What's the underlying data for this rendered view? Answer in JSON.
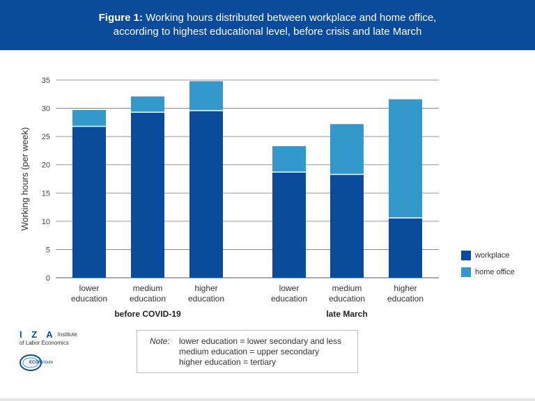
{
  "header": {
    "figure_label": "Figure 1:",
    "title_line1": "Working hours distributed between workplace and home office,",
    "title_line2": "according to highest educational level, before crisis and late March"
  },
  "chart_data": {
    "type": "bar",
    "stacked": true,
    "ylabel": "Working hours (per week)",
    "ylim": [
      0,
      35
    ],
    "yticks": [
      0,
      5,
      10,
      15,
      20,
      25,
      30,
      35
    ],
    "grid": true,
    "groups": [
      {
        "label": "before COVID-19",
        "categories": [
          [
            "lower",
            "education"
          ],
          [
            "medium",
            "education"
          ],
          [
            "higher",
            "education"
          ]
        ]
      },
      {
        "label": "late March",
        "categories": [
          [
            "lower",
            "education"
          ],
          [
            "medium",
            "education"
          ],
          [
            "higher",
            "education"
          ]
        ]
      }
    ],
    "series": [
      {
        "name": "workplace",
        "color": "#0a4b9b",
        "values": [
          26.8,
          29.3,
          29.6,
          18.7,
          18.3,
          10.6
        ]
      },
      {
        "name": "home office",
        "color": "#3399cc",
        "values": [
          2.9,
          2.8,
          5.2,
          4.6,
          8.9,
          21.0
        ]
      }
    ],
    "legend_position": "right"
  },
  "note": {
    "label": "Note:",
    "lines": [
      "lower education = lower secondary and less",
      "medium education = upper secondary",
      "higher education = tertiary"
    ]
  },
  "logos": {
    "iza_letters": "I Z A",
    "iza_institute": "Institute",
    "iza_subtitle": "of Labor Economics",
    "econ_bold": "ECON",
    "econ_rest": "tribute"
  }
}
